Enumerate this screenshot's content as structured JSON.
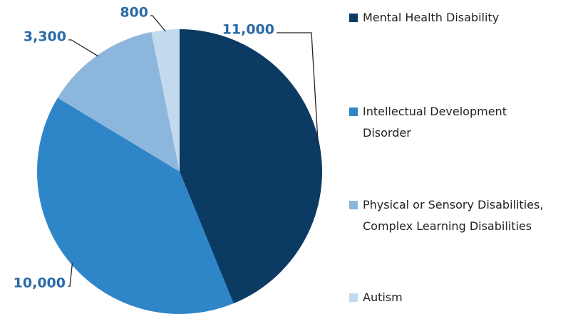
{
  "chart_data": {
    "type": "pie",
    "categories": [
      "Mental Health Disability",
      "Intellectual Development\nDisorder",
      "Physical or Sensory Disabilities,\nComplex Learning Disabilities",
      "Autism"
    ],
    "values": [
      11000,
      10000,
      3300,
      800
    ],
    "value_labels": [
      "11,000",
      "10,000",
      "3,300",
      "800"
    ],
    "colors": [
      "#0b3a63",
      "#2e86c8",
      "#8db6dc",
      "#c2d9ee"
    ],
    "legend": "right"
  }
}
